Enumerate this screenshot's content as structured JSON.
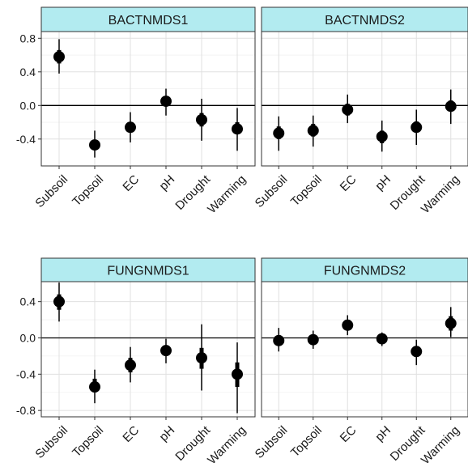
{
  "chart_data": [
    {
      "type": "scatter",
      "style": "point-range (mean with thin and thick interval lines)",
      "title": "BACTNMDS1",
      "categories": [
        "Subsoil",
        "Topsoil",
        "EC",
        "pH",
        "Drought",
        "Warming"
      ],
      "ylim": [
        -0.72,
        0.88
      ],
      "yticks": [
        0.8,
        0.4,
        0.0,
        -0.4
      ],
      "ytick_labels": [
        "0.8",
        "0.4",
        "0.0",
        "-0.4"
      ],
      "points": [
        {
          "label": "Subsoil",
          "value": 0.58,
          "inner": [
            0.5,
            0.66
          ],
          "outer": [
            0.38,
            0.79
          ]
        },
        {
          "label": "Topsoil",
          "value": -0.47,
          "inner": [
            -0.52,
            -0.43
          ],
          "outer": [
            -0.62,
            -0.3
          ]
        },
        {
          "label": "EC",
          "value": -0.26,
          "inner": [
            -0.31,
            -0.2
          ],
          "outer": [
            -0.44,
            -0.08
          ]
        },
        {
          "label": "pH",
          "value": 0.05,
          "inner": [
            0.0,
            0.11
          ],
          "outer": [
            -0.12,
            0.2
          ]
        },
        {
          "label": "Drought",
          "value": -0.17,
          "inner": [
            -0.25,
            -0.09
          ],
          "outer": [
            -0.42,
            0.08
          ]
        },
        {
          "label": "Warming",
          "value": -0.28,
          "inner": [
            -0.34,
            -0.2
          ],
          "outer": [
            -0.54,
            -0.03
          ]
        }
      ]
    },
    {
      "type": "scatter",
      "style": "point-range (mean with thin and thick interval lines)",
      "title": "BACTNMDS2",
      "categories": [
        "Subsoil",
        "Topsoil",
        "EC",
        "pH",
        "Drought",
        "Warming"
      ],
      "ylim": [
        -0.72,
        0.88
      ],
      "points": [
        {
          "label": "Subsoil",
          "value": -0.33,
          "inner": [
            -0.4,
            -0.25
          ],
          "outer": [
            -0.54,
            -0.13
          ]
        },
        {
          "label": "Topsoil",
          "value": -0.3,
          "inner": [
            -0.37,
            -0.22
          ],
          "outer": [
            -0.49,
            -0.12
          ]
        },
        {
          "label": "EC",
          "value": -0.05,
          "inner": [
            -0.12,
            0.02
          ],
          "outer": [
            -0.21,
            0.13
          ]
        },
        {
          "label": "pH",
          "value": -0.37,
          "inner": [
            -0.45,
            -0.3
          ],
          "outer": [
            -0.55,
            -0.18
          ]
        },
        {
          "label": "Drought",
          "value": -0.26,
          "inner": [
            -0.32,
            -0.19
          ],
          "outer": [
            -0.47,
            -0.05
          ]
        },
        {
          "label": "Warming",
          "value": -0.01,
          "inner": [
            -0.07,
            0.06
          ],
          "outer": [
            -0.22,
            0.19
          ]
        }
      ]
    },
    {
      "type": "scatter",
      "style": "point-range (mean with thin and thick interval lines)",
      "title": "FUNGNMDS1",
      "categories": [
        "Subsoil",
        "Topsoil",
        "EC",
        "pH",
        "Drought",
        "Warming"
      ],
      "ylim": [
        -0.87,
        0.62
      ],
      "yticks": [
        0.4,
        0.0,
        -0.4,
        -0.8
      ],
      "ytick_labels": [
        "0.4",
        "0.0",
        "-0.4",
        "-0.8"
      ],
      "points": [
        {
          "label": "Subsoil",
          "value": 0.4,
          "inner": [
            0.31,
            0.48
          ],
          "outer": [
            0.18,
            0.61
          ]
        },
        {
          "label": "Topsoil",
          "value": -0.54,
          "inner": [
            -0.6,
            -0.45
          ],
          "outer": [
            -0.72,
            -0.35
          ]
        },
        {
          "label": "EC",
          "value": -0.3,
          "inner": [
            -0.38,
            -0.22
          ],
          "outer": [
            -0.49,
            -0.1
          ]
        },
        {
          "label": "pH",
          "value": -0.14,
          "inner": [
            -0.19,
            -0.08
          ],
          "outer": [
            -0.28,
            -0.01
          ]
        },
        {
          "label": "Drought",
          "value": -0.22,
          "inner": [
            -0.34,
            -0.11
          ],
          "outer": [
            -0.58,
            0.15
          ]
        },
        {
          "label": "Warming",
          "value": -0.4,
          "inner": [
            -0.54,
            -0.27
          ],
          "outer": [
            -0.83,
            -0.05
          ]
        }
      ]
    },
    {
      "type": "scatter",
      "style": "point-range (mean with thin and thick interval lines)",
      "title": "FUNGNMDS2",
      "categories": [
        "Subsoil",
        "Topsoil",
        "EC",
        "pH",
        "Drought",
        "Warming"
      ],
      "ylim": [
        -0.87,
        0.62
      ],
      "points": [
        {
          "label": "Subsoil",
          "value": -0.03,
          "inner": [
            -0.08,
            0.03
          ],
          "outer": [
            -0.15,
            0.11
          ]
        },
        {
          "label": "Topsoil",
          "value": -0.02,
          "inner": [
            -0.06,
            0.02
          ],
          "outer": [
            -0.12,
            0.08
          ]
        },
        {
          "label": "EC",
          "value": 0.14,
          "inner": [
            0.09,
            0.2
          ],
          "outer": [
            0.03,
            0.25
          ]
        },
        {
          "label": "pH",
          "value": -0.01,
          "inner": [
            -0.05,
            0.03
          ],
          "outer": [
            -0.09,
            0.06
          ]
        },
        {
          "label": "Drought",
          "value": -0.15,
          "inner": [
            -0.21,
            -0.09
          ],
          "outer": [
            -0.3,
            -0.02
          ]
        },
        {
          "label": "Warming",
          "value": 0.16,
          "inner": [
            0.08,
            0.24
          ],
          "outer": [
            0.01,
            0.34
          ]
        }
      ]
    }
  ],
  "colors": {
    "strip_fill": "#b2ebf0",
    "strip_border": "#333333",
    "panel_border": "#333333",
    "grid_major": "#e0e0e0",
    "grid_minor": "#f2f2f2",
    "point": "#000000",
    "zero_line": "#000000",
    "text": "#1a1a1a"
  },
  "grid": true,
  "reference_line": 0
}
